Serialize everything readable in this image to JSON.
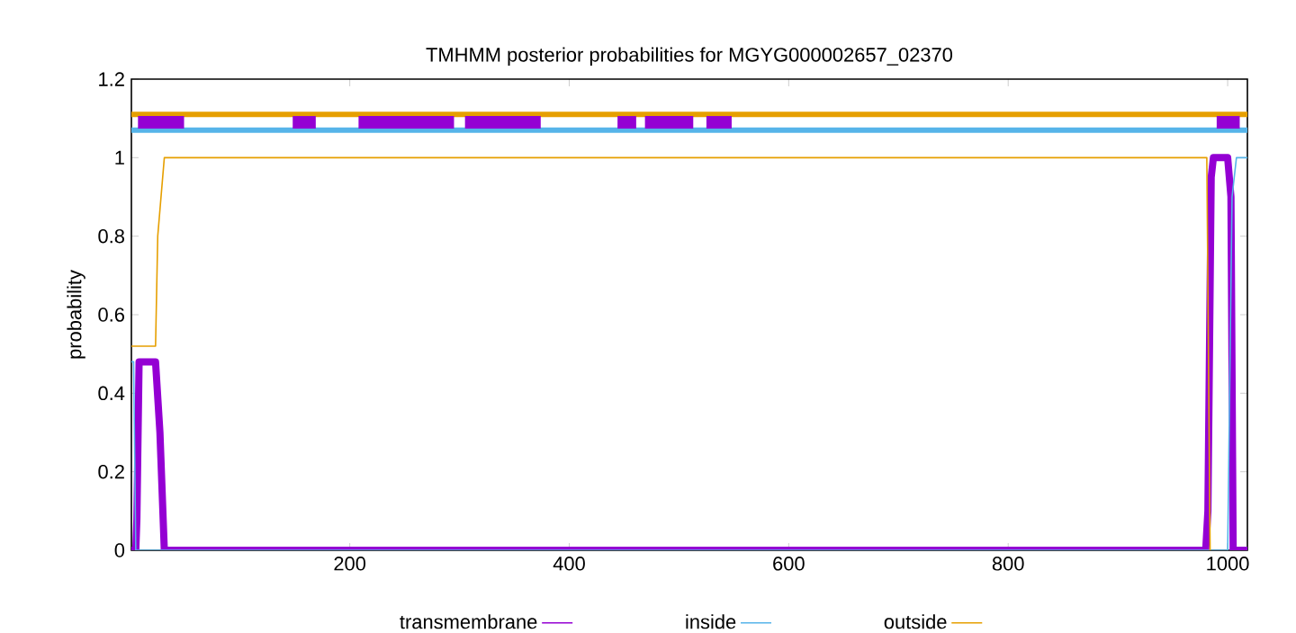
{
  "chart_data": {
    "type": "line",
    "title": "TMHMM posterior probabilities for MGYG000002657_02370",
    "ylabel": "probability",
    "xlim": [
      1,
      1018
    ],
    "ylim": [
      0,
      1.2
    ],
    "xticks": [
      200,
      400,
      600,
      800,
      1000
    ],
    "yticks": [
      0,
      {
        "value": 0.2,
        "label": "0.2"
      },
      {
        "value": 0.4,
        "label": "0.4"
      },
      {
        "value": 0.6,
        "label": "0.6"
      },
      {
        "value": 0.8,
        "label": "0.8"
      },
      1,
      {
        "value": 1.2,
        "label": "1.2"
      }
    ],
    "legend": "bottom",
    "grid": false,
    "marker": "none",
    "line_style": "solid",
    "series": [
      {
        "name": "transmembrane",
        "color": "#9400d3",
        "x": [
          1,
          5,
          6,
          8,
          23,
          27,
          31,
          980,
          982,
          985,
          987,
          1000,
          1003,
          1005,
          1018
        ],
        "values": [
          0,
          0,
          0.08,
          0.48,
          0.48,
          0.3,
          0,
          0,
          0.1,
          0.95,
          1,
          1,
          0.9,
          0,
          0
        ]
      },
      {
        "name": "inside",
        "color": "#56b4e9",
        "x": [
          1,
          3,
          5,
          1000,
          1004,
          1008,
          1018
        ],
        "values": [
          0.48,
          0.48,
          0,
          0,
          0.9,
          1,
          1
        ]
      },
      {
        "name": "outside",
        "color": "#e69f00",
        "x": [
          1,
          23,
          25,
          31,
          981,
          984
        ],
        "values": [
          0.52,
          0.52,
          0.8,
          1,
          1,
          0
        ]
      },
      {
        "color": "#e69f00",
        "x": [
          1,
          1018
        ],
        "values": [
          1.11,
          1.11
        ]
      },
      {
        "color": "#56b4e9",
        "x": [
          1,
          1018
        ],
        "values": [
          1.07,
          1.07
        ]
      },
      {
        "color": "#9400d3",
        "x": [
          7,
          49
        ],
        "values": [
          1.09,
          1.09
        ]
      },
      {
        "color": "#9400d3",
        "x": [
          148,
          169
        ],
        "values": [
          1.09,
          1.09
        ]
      },
      {
        "color": "#9400d3",
        "x": [
          208,
          295
        ],
        "values": [
          1.09,
          1.09
        ]
      },
      {
        "color": "#9400d3",
        "x": [
          305,
          374
        ],
        "values": [
          1.09,
          1.09
        ]
      },
      {
        "color": "#9400d3",
        "x": [
          444,
          461
        ],
        "values": [
          1.09,
          1.09
        ]
      },
      {
        "color": "#9400d3",
        "x": [
          469,
          513
        ],
        "values": [
          1.09,
          1.09
        ]
      },
      {
        "color": "#9400d3",
        "x": [
          525,
          548
        ],
        "values": [
          1.09,
          1.09
        ]
      },
      {
        "color": "#9400d3",
        "x": [
          990,
          1011
        ],
        "values": [
          1.09,
          1.09
        ]
      }
    ]
  }
}
